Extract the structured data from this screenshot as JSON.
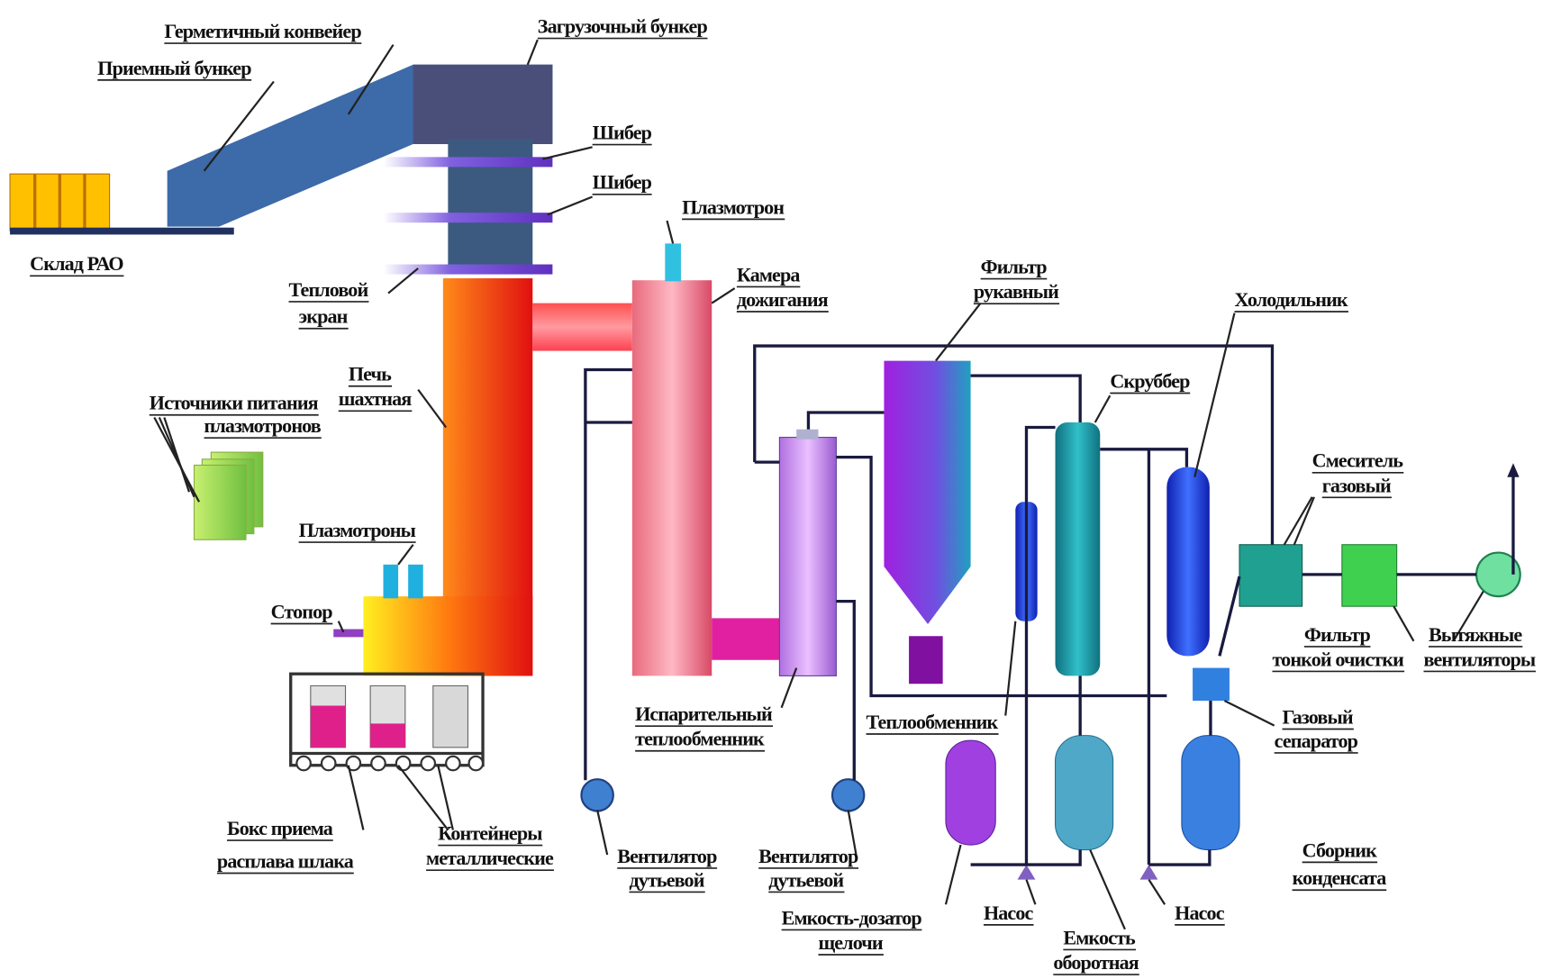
{
  "labels": [
    {
      "lines": [
        "Герметичный конвейер"
      ]
    },
    {
      "lines": [
        "Приемный бункер"
      ]
    },
    {
      "lines": [
        "Загрузочный бункер"
      ]
    },
    {
      "lines": [
        "Шибер"
      ]
    },
    {
      "lines": [
        "Шибер"
      ]
    },
    {
      "lines": [
        "Склад РАО"
      ]
    },
    {
      "lines": [
        "Плазмотрон"
      ]
    },
    {
      "lines": [
        "Камера",
        "дожигания"
      ]
    },
    {
      "lines": [
        "Тепловой",
        "экран"
      ]
    },
    {
      "lines": [
        "Печь",
        "шахтная"
      ]
    },
    {
      "lines": [
        "Источники питания",
        "плазмотронов"
      ]
    },
    {
      "lines": [
        "Плазмотроны"
      ]
    },
    {
      "lines": [
        "Стопор"
      ]
    },
    {
      "lines": [
        "Бокс приема",
        "расплава шлака"
      ]
    },
    {
      "lines": [
        "Контейнеры",
        "металлические"
      ]
    },
    {
      "lines": [
        "Вентилятор",
        "дутьевой"
      ]
    },
    {
      "lines": [
        "Вентилятор",
        "дутьевой"
      ]
    },
    {
      "lines": [
        "Испарительный",
        "теплообменник"
      ]
    },
    {
      "lines": [
        "Фильтр",
        "рукавный"
      ]
    },
    {
      "lines": [
        "Скруббер"
      ]
    },
    {
      "lines": [
        "Холодильник"
      ]
    },
    {
      "lines": [
        "Смеситель",
        "газовый"
      ]
    },
    {
      "lines": [
        "Фильтр",
        "тонкой очистки"
      ]
    },
    {
      "lines": [
        "Вытяжные",
        "вентиляторы"
      ]
    },
    {
      "lines": [
        "Теплообменник"
      ]
    },
    {
      "lines": [
        "Газовый",
        "сепаратор"
      ]
    },
    {
      "lines": [
        "Сборник",
        "конденсата"
      ]
    },
    {
      "lines": [
        "Емкость-дозатор",
        "щелочи"
      ]
    },
    {
      "lines": [
        "Насос"
      ]
    },
    {
      "lines": [
        "Емкость",
        "оборотная"
      ]
    },
    {
      "lines": [
        "Насос"
      ]
    }
  ]
}
